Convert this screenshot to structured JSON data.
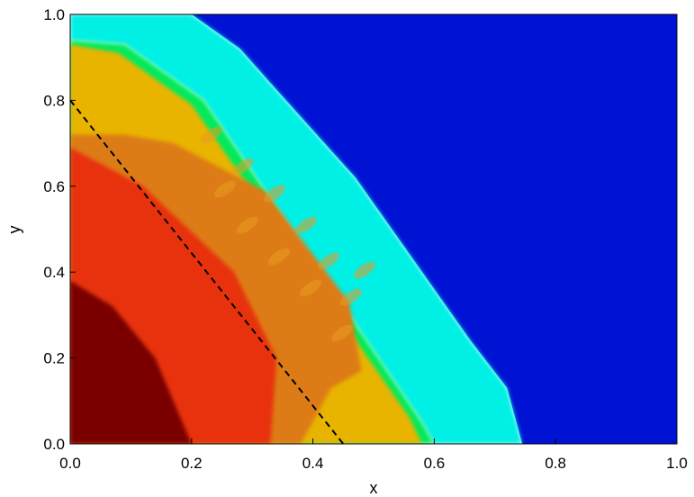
{
  "chart_data": {
    "type": "heatmap",
    "title": "",
    "xlabel": "x",
    "ylabel": "y",
    "xlim": [
      0.0,
      1.0
    ],
    "ylim": [
      0.0,
      1.0
    ],
    "x_ticks": [
      "0.0",
      "0.2",
      "0.4",
      "0.6",
      "0.8",
      "1.0"
    ],
    "y_ticks": [
      "0.0",
      "0.2",
      "0.4",
      "0.6",
      "0.8",
      "1.0"
    ],
    "grid": false,
    "legend": "none",
    "colormap": [
      "#0000cc",
      "#00ffee",
      "#00ee66",
      "#eebb00",
      "#dd7700",
      "#ee2200",
      "#800000"
    ],
    "regions": [
      {
        "name": "background",
        "color": "#0012d4",
        "boundary": [
          [
            0.2,
            1.0
          ],
          [
            1.0,
            1.0
          ],
          [
            1.0,
            0.0
          ],
          [
            0.745,
            0.0
          ],
          [
            0.72,
            0.13
          ],
          [
            0.66,
            0.24
          ],
          [
            0.47,
            0.62
          ],
          [
            0.33,
            0.84
          ],
          [
            0.28,
            0.92
          ],
          [
            0.2,
            1.0
          ]
        ]
      },
      {
        "name": "cyan-band",
        "color": "#00f0e6",
        "boundary": [
          [
            0.0,
            1.0
          ],
          [
            0.2,
            1.0
          ],
          [
            0.28,
            0.92
          ],
          [
            0.33,
            0.84
          ],
          [
            0.47,
            0.62
          ],
          [
            0.66,
            0.24
          ],
          [
            0.72,
            0.13
          ],
          [
            0.745,
            0.0
          ],
          [
            0.6,
            0.0
          ],
          [
            0.58,
            0.05
          ],
          [
            0.22,
            0.8
          ],
          [
            0.09,
            0.93
          ],
          [
            0.0,
            0.94
          ]
        ]
      },
      {
        "name": "green-band",
        "color": "#00ea5c",
        "boundary": [
          [
            0.0,
            0.94
          ],
          [
            0.09,
            0.93
          ],
          [
            0.22,
            0.8
          ],
          [
            0.58,
            0.05
          ],
          [
            0.6,
            0.0
          ],
          [
            0.0,
            0.0
          ]
        ]
      },
      {
        "name": "yellow-orange-band",
        "color": "#e8b400",
        "boundary": [
          [
            0.0,
            0.93
          ],
          [
            0.08,
            0.91
          ],
          [
            0.2,
            0.79
          ],
          [
            0.56,
            0.06
          ],
          [
            0.58,
            0.0
          ],
          [
            0.0,
            0.0
          ]
        ]
      },
      {
        "name": "orange-band",
        "color": "#dd7c12",
        "boundary": [
          [
            0.0,
            0.72
          ],
          [
            0.09,
            0.72
          ],
          [
            0.17,
            0.7
          ],
          [
            0.32,
            0.59
          ],
          [
            0.46,
            0.33
          ],
          [
            0.48,
            0.17
          ],
          [
            0.43,
            0.13
          ],
          [
            0.38,
            0.0
          ],
          [
            0.0,
            0.0
          ]
        ]
      },
      {
        "name": "red-band",
        "color": "#e8300a",
        "boundary": [
          [
            0.0,
            0.69
          ],
          [
            0.12,
            0.6
          ],
          [
            0.27,
            0.4
          ],
          [
            0.34,
            0.2
          ],
          [
            0.33,
            0.0
          ],
          [
            0.0,
            0.0
          ]
        ]
      },
      {
        "name": "dark-red-core",
        "color": "#7a0000",
        "boundary": [
          [
            0.0,
            0.38
          ],
          [
            0.07,
            0.32
          ],
          [
            0.14,
            0.2
          ],
          [
            0.2,
            0.0
          ],
          [
            0.0,
            0.0
          ]
        ]
      }
    ],
    "dashed_line": {
      "x": [
        0.0,
        0.45
      ],
      "y": [
        0.8,
        0.0
      ],
      "color": "#000000"
    }
  }
}
